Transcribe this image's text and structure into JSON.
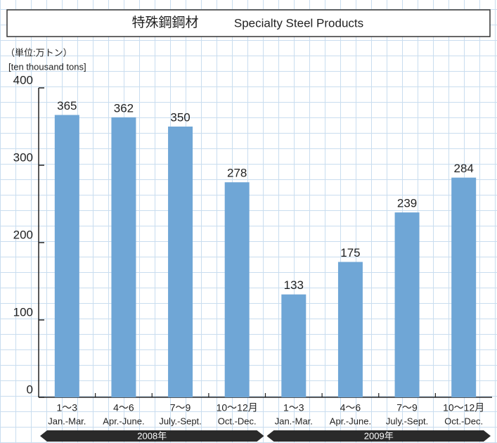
{
  "chart_data": {
    "type": "bar",
    "title": "特殊鋼鋼材",
    "subtitle": "Specialty Steel Products",
    "y_unit": "（単位:万トン）",
    "y_label": "[ten thousand tons]",
    "categories": [
      "1～3",
      "4～6",
      "7～9",
      "10～12月",
      "1～3",
      "4～6",
      "7～9",
      "10～12月"
    ],
    "category_sublabels": [
      "Jan.-Mar.",
      "Apr.-June.",
      "July.-Sept.",
      "Oct.-Dec.",
      "Jan.-Mar.",
      "Apr.-June.",
      "July.-Sept.",
      "Oct.-Dec."
    ],
    "groups": [
      {
        "label": "2008年",
        "size": 4
      },
      {
        "label": "2009年",
        "size": 4
      }
    ],
    "values": [
      365,
      362,
      350,
      278,
      133,
      175,
      239,
      284
    ],
    "color": "#6fa6d6",
    "ylim": [
      0,
      400
    ],
    "yticks": [
      0,
      100,
      200,
      300,
      400
    ]
  }
}
